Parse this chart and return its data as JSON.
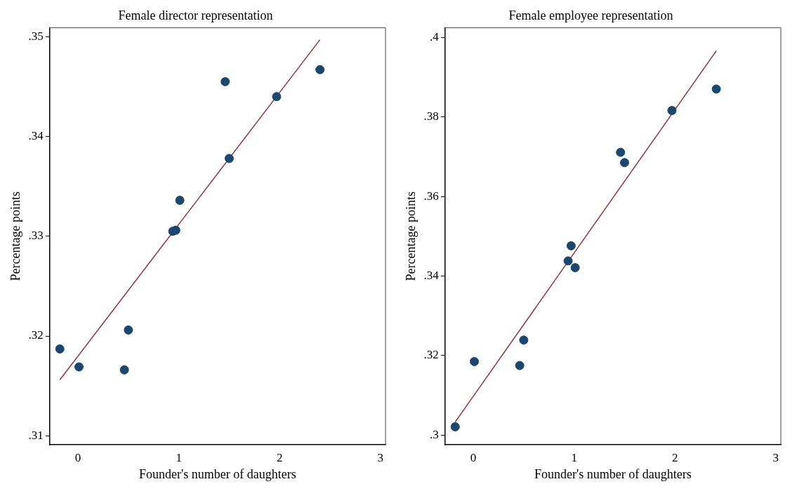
{
  "chart_data": [
    {
      "type": "scatter",
      "title": "Female director representation",
      "xlabel": "Founder's number of daughters",
      "ylabel": "Percentage points",
      "xlim": [
        -0.28,
        3.05
      ],
      "ylim": [
        0.3091,
        0.3509
      ],
      "xticks": [
        0,
        1,
        2,
        3
      ],
      "yticks": [
        {
          "value": 0.31,
          "label": ".31"
        },
        {
          "value": 0.32,
          "label": ".32"
        },
        {
          "value": 0.33,
          "label": ".33"
        },
        {
          "value": 0.34,
          "label": ".34"
        },
        {
          "value": 0.35,
          "label": ".35"
        }
      ],
      "grid": false,
      "legend": false,
      "series": [
        {
          "marker": "circle",
          "color": "#1a476f",
          "x": [
            -0.18,
            0.01,
            0.46,
            0.5,
            0.94,
            0.97,
            1.01,
            1.46,
            1.5,
            1.97,
            2.4
          ],
          "values": [
            0.3187,
            0.3169,
            0.3166,
            0.3206,
            0.3305,
            0.3306,
            0.3336,
            0.3455,
            0.3378,
            0.344,
            0.3467
          ]
        },
        {
          "type": "line",
          "marker": "none",
          "color": "#90353b",
          "x": [
            -0.18,
            2.4
          ],
          "values": [
            0.3156,
            0.3497
          ]
        }
      ]
    },
    {
      "type": "scatter",
      "title": "Female employee representation",
      "xlabel": "Founder's number of daughters",
      "ylabel": "Percentage points",
      "xlim": [
        -0.28,
        3.05
      ],
      "ylim": [
        0.2976,
        0.4024
      ],
      "xticks": [
        0,
        1,
        2,
        3
      ],
      "yticks": [
        {
          "value": 0.3,
          "label": ".3"
        },
        {
          "value": 0.32,
          "label": ".32"
        },
        {
          "value": 0.34,
          "label": ".34"
        },
        {
          "value": 0.36,
          "label": ".36"
        },
        {
          "value": 0.38,
          "label": ".38"
        },
        {
          "value": 0.4,
          "label": ".4"
        }
      ],
      "grid": false,
      "legend": false,
      "series": [
        {
          "marker": "circle",
          "color": "#1a476f",
          "x": [
            -0.18,
            0.01,
            0.46,
            0.5,
            0.94,
            0.97,
            1.01,
            1.46,
            1.5,
            1.97,
            2.41
          ],
          "values": [
            0.3021,
            0.3185,
            0.3175,
            0.3239,
            0.3438,
            0.3476,
            0.3421,
            0.3711,
            0.3685,
            0.3816,
            0.387
          ]
        },
        {
          "type": "line",
          "marker": "none",
          "color": "#90353b",
          "x": [
            -0.18,
            2.41
          ],
          "values": [
            0.3033,
            0.3966
          ]
        }
      ]
    }
  ]
}
